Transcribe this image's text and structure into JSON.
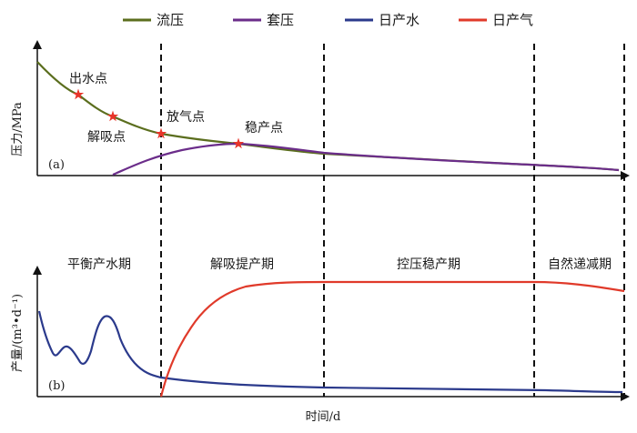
{
  "legend": [
    {
      "label": "流压",
      "color": "#5b6e1e"
    },
    {
      "label": "套压",
      "color": "#6b2d8a"
    },
    {
      "label": "日产水",
      "color": "#2b3a8c"
    },
    {
      "label": "日产气",
      "color": "#e03a2a"
    }
  ],
  "top_panel": {
    "panel_label": "(a)",
    "ylabel": "压力/MPa",
    "points": [
      "出水点",
      "解吸点",
      "放气点",
      "稳产点"
    ]
  },
  "bottom_panel": {
    "panel_label": "(b)",
    "ylabel": "产量/(m³•d⁻¹)",
    "phases": [
      "平衡产水期",
      "解吸提产期",
      "控压稳产期",
      "自然递减期"
    ]
  },
  "xlabel": "时间/d",
  "marker_color": "#e8352a"
}
